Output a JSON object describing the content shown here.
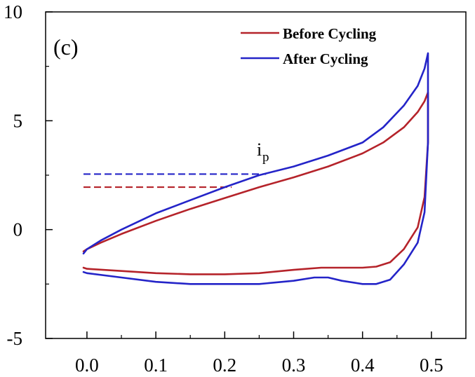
{
  "chart_data": {
    "type": "line",
    "panel_label": "(c)",
    "annotation": "i",
    "annotation_sub": "p",
    "x_ticks": [
      "0.0",
      "0.1",
      "0.2",
      "0.3",
      "0.4",
      "0.5"
    ],
    "y_ticks": [
      "-5",
      "0",
      "5",
      "10"
    ],
    "xlim": [
      -0.06,
      0.55
    ],
    "ylim": [
      -5,
      10
    ],
    "grid": false,
    "legend_position": "top-right",
    "series": [
      {
        "name": "Before Cycling",
        "color": "#b5232a",
        "x": [
          -0.005,
          0.0,
          0.02,
          0.05,
          0.1,
          0.15,
          0.2,
          0.25,
          0.3,
          0.35,
          0.4,
          0.43,
          0.46,
          0.48,
          0.49,
          0.495,
          0.495,
          0.49,
          0.48,
          0.46,
          0.44,
          0.42,
          0.4,
          0.37,
          0.34,
          0.3,
          0.25,
          0.2,
          0.15,
          0.1,
          0.05,
          0.0,
          -0.005
        ],
        "y": [
          -1.0,
          -0.9,
          -0.6,
          -0.2,
          0.4,
          0.95,
          1.45,
          1.95,
          2.4,
          2.9,
          3.5,
          4.0,
          4.7,
          5.4,
          5.9,
          6.3,
          4.0,
          1.5,
          0.1,
          -0.9,
          -1.5,
          -1.7,
          -1.75,
          -1.75,
          -1.75,
          -1.85,
          -2.0,
          -2.05,
          -2.05,
          -2.0,
          -1.9,
          -1.8,
          -1.75
        ],
        "dashed_x": [
          -0.005,
          0.21
        ],
        "dashed_y": 1.95
      },
      {
        "name": "After Cycling",
        "color": "#2424c8",
        "x": [
          -0.005,
          0.0,
          0.02,
          0.05,
          0.1,
          0.15,
          0.2,
          0.25,
          0.3,
          0.35,
          0.4,
          0.43,
          0.46,
          0.48,
          0.49,
          0.495,
          0.495,
          0.49,
          0.48,
          0.46,
          0.44,
          0.42,
          0.4,
          0.37,
          0.35,
          0.33,
          0.3,
          0.25,
          0.2,
          0.15,
          0.1,
          0.05,
          0.0,
          -0.005
        ],
        "y": [
          -1.1,
          -0.9,
          -0.5,
          0.0,
          0.75,
          1.35,
          1.95,
          2.5,
          2.9,
          3.4,
          4.0,
          4.7,
          5.7,
          6.6,
          7.4,
          8.1,
          4.0,
          0.8,
          -0.6,
          -1.6,
          -2.3,
          -2.5,
          -2.5,
          -2.35,
          -2.2,
          -2.2,
          -2.35,
          -2.5,
          -2.5,
          -2.5,
          -2.4,
          -2.2,
          -2.0,
          -1.95
        ],
        "dashed_x": [
          -0.005,
          0.26
        ],
        "dashed_y": 2.55
      }
    ]
  }
}
